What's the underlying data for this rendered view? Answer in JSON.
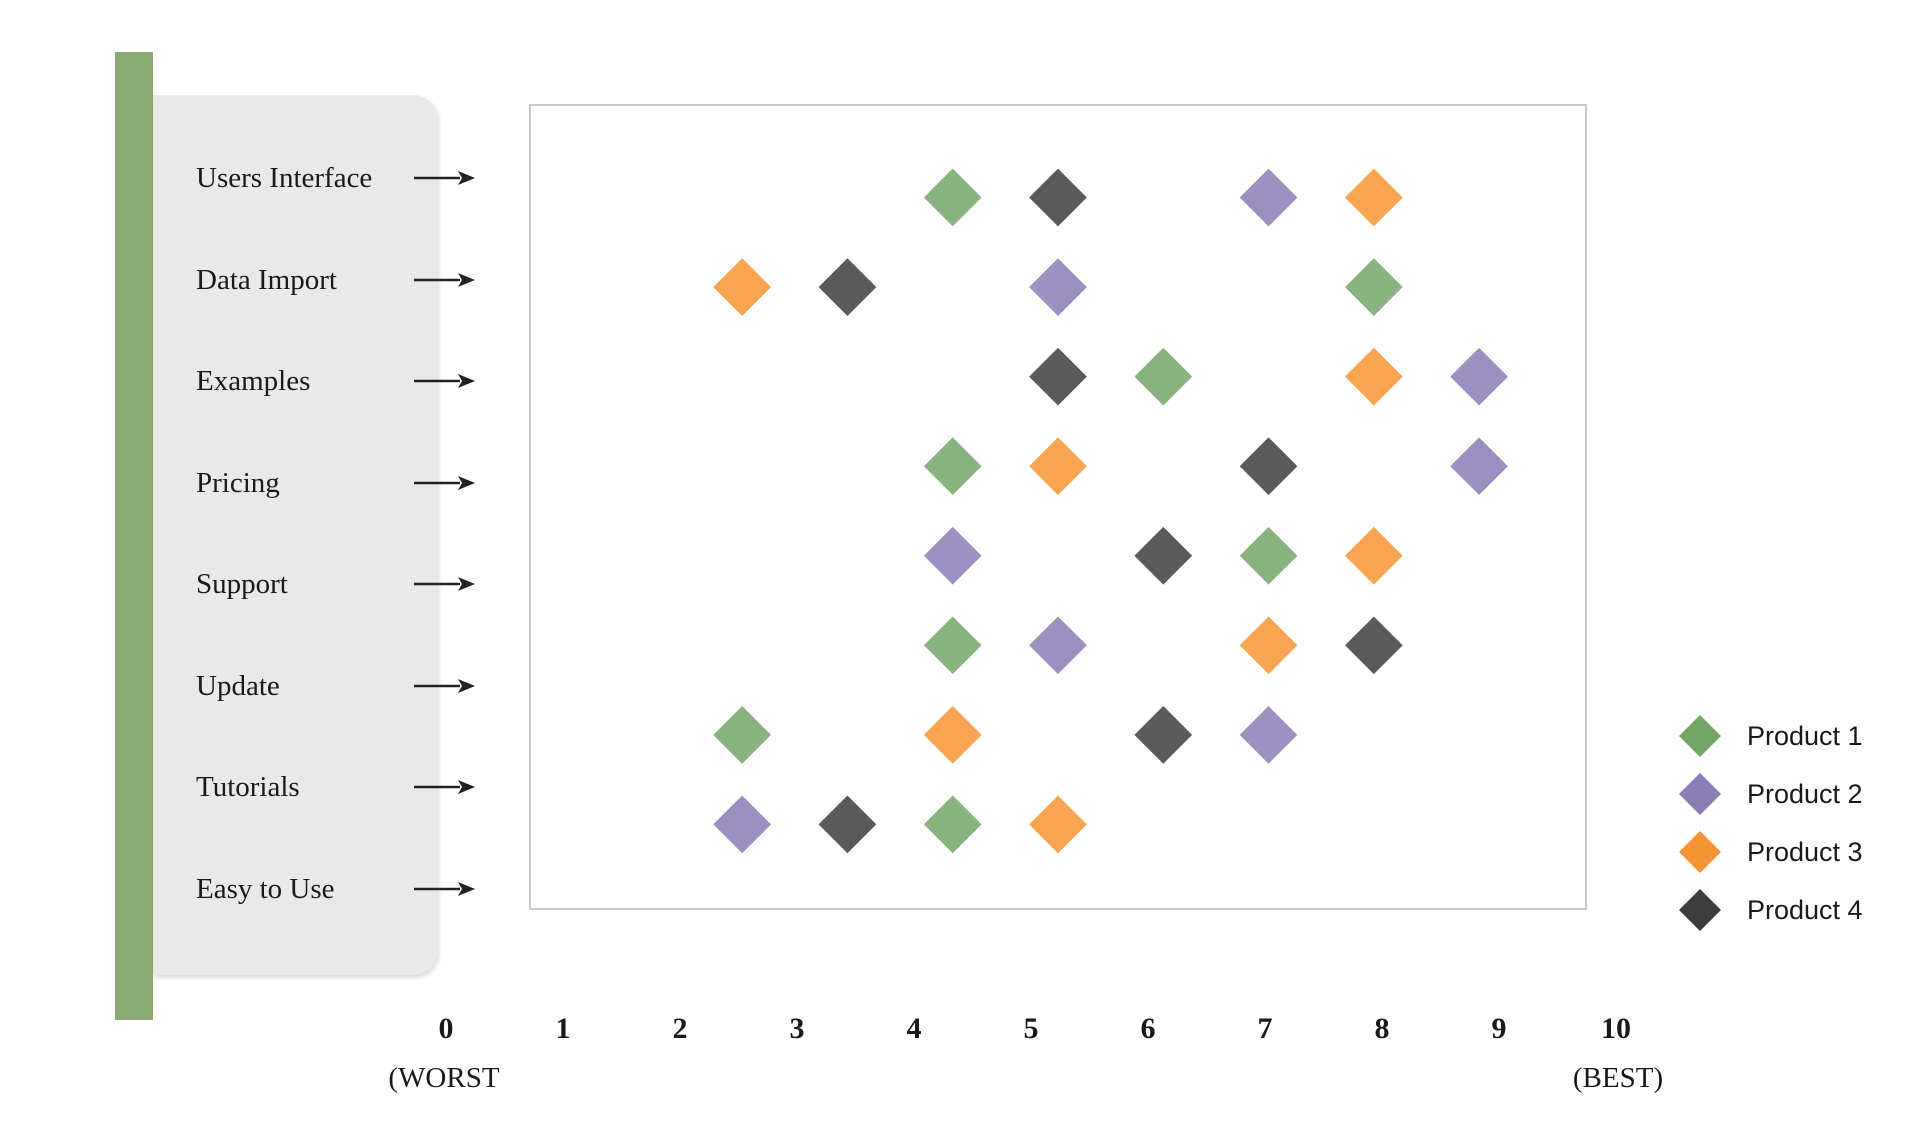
{
  "chart_data": {
    "type": "scatter",
    "marker_shape": "diamond",
    "categories": [
      "Users Interface",
      "Data Import",
      "Examples",
      "Pricing",
      "Support",
      "Update",
      "Tutorials",
      "Easy to Use"
    ],
    "x_ticks": [
      "0",
      "1",
      "2",
      "3",
      "4",
      "5",
      "6",
      "7",
      "8",
      "9",
      "10"
    ],
    "x_axis": {
      "min": 0,
      "max": 10,
      "worst_caption": "(WORST",
      "best_caption": "(BEST)"
    },
    "grid": "off",
    "legend_position": "right",
    "series": [
      {
        "name": "Product 1",
        "color": "#73a567",
        "values": [
          4,
          8,
          6,
          4,
          7,
          4,
          2,
          4
        ]
      },
      {
        "name": "Product 2",
        "color": "#8a7cb5",
        "values": [
          7,
          5,
          9,
          9,
          4,
          5,
          7,
          2
        ]
      },
      {
        "name": "Product 3",
        "color": "#f79433",
        "values": [
          8,
          2,
          8,
          5,
          8,
          7,
          4,
          5
        ]
      },
      {
        "name": "Product 4",
        "color": "#3d3d3d",
        "values": [
          5,
          3,
          5,
          7,
          6,
          8,
          6,
          3
        ]
      }
    ]
  },
  "panel": {
    "bar_color": "#87ab70",
    "panel_color": "#e9e9e9"
  },
  "text_color": "#1a1a1a"
}
